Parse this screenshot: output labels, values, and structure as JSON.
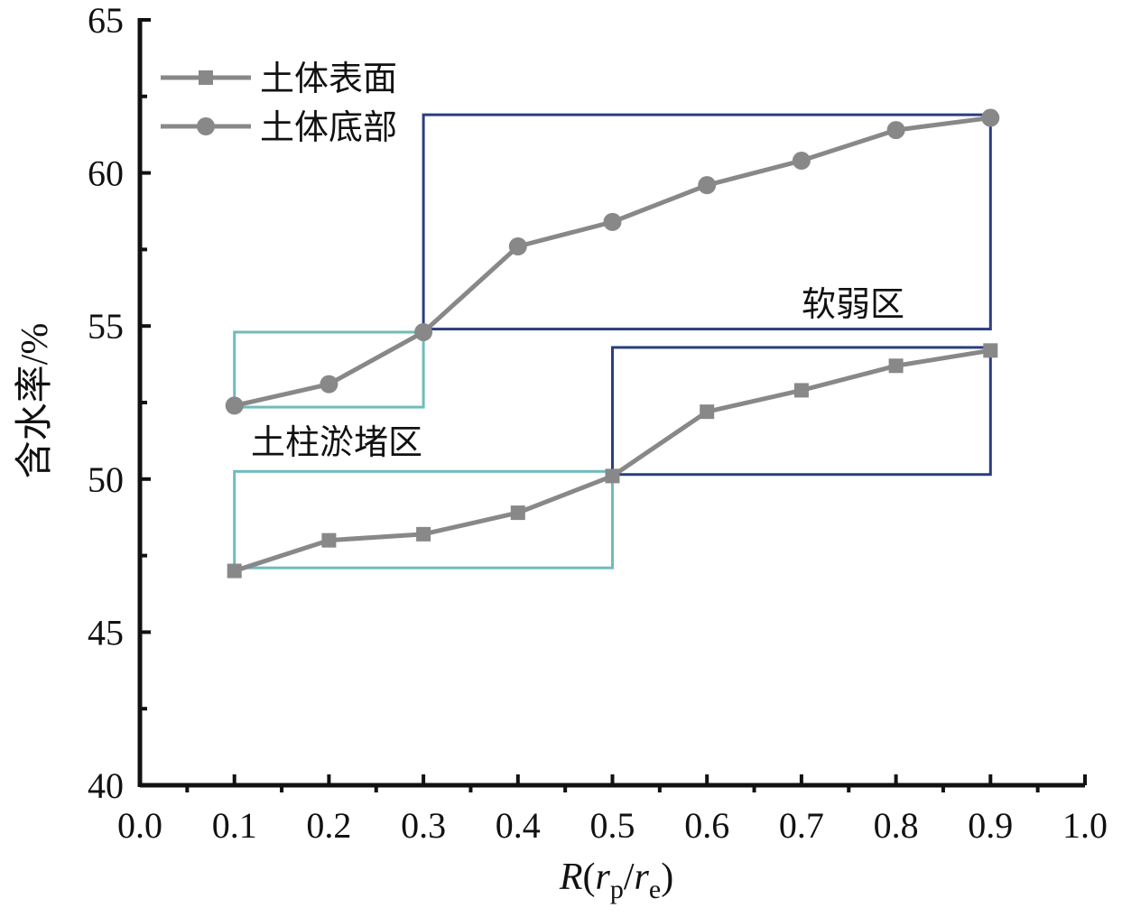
{
  "chart_data": {
    "type": "line",
    "xlabel": {
      "main": "R",
      "r1": "r",
      "sub1": "p",
      "slash": "/",
      "r2": "r",
      "sub2": "e"
    },
    "ylabel": "含水率/%",
    "xlim": [
      0.0,
      1.0
    ],
    "ylim": [
      40,
      65
    ],
    "x_ticks": [
      "0.0",
      "0.1",
      "0.2",
      "0.3",
      "0.4",
      "0.5",
      "0.6",
      "0.7",
      "0.8",
      "0.9",
      "1.0"
    ],
    "y_ticks": [
      "40",
      "45",
      "50",
      "55",
      "60",
      "65"
    ],
    "x": [
      0.1,
      0.2,
      0.3,
      0.4,
      0.5,
      0.6,
      0.7,
      0.8,
      0.9
    ],
    "series": [
      {
        "name": "土体表面",
        "marker": "square",
        "values": [
          47.0,
          48.0,
          48.2,
          48.9,
          50.1,
          52.2,
          52.9,
          53.7,
          54.2
        ]
      },
      {
        "name": "土体底部",
        "marker": "circle",
        "values": [
          52.4,
          53.1,
          54.8,
          57.6,
          58.4,
          59.6,
          60.4,
          61.4,
          61.8
        ]
      }
    ],
    "legend_position": "top-left",
    "series_color": "#888888",
    "regions": [
      {
        "label": "土柱淤堵区",
        "color": "#6fbcbc",
        "boxes": [
          {
            "x0": 0.1,
            "x1": 0.3,
            "y0": 52.35,
            "y1": 54.8
          },
          {
            "x0": 0.1,
            "x1": 0.5,
            "y0": 47.1,
            "y1": 50.25
          }
        ]
      },
      {
        "label": "软弱区",
        "color": "#2b3f7e",
        "boxes": [
          {
            "x0": 0.3,
            "x1": 0.9,
            "y0": 54.9,
            "y1": 61.9
          },
          {
            "x0": 0.5,
            "x1": 0.9,
            "y0": 50.15,
            "y1": 54.3
          }
        ]
      }
    ]
  }
}
